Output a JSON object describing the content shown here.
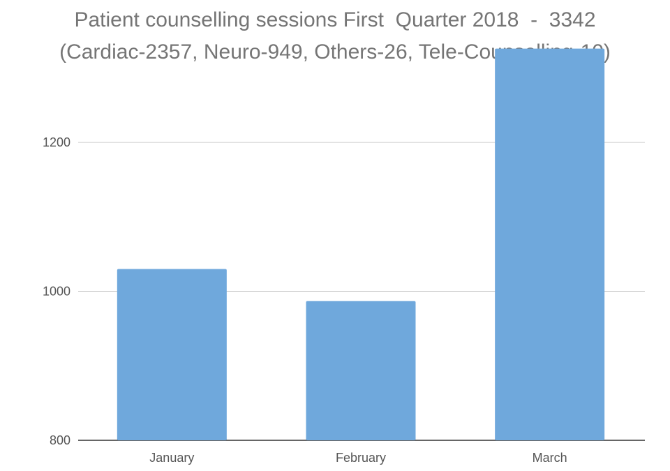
{
  "chart_data": {
    "type": "bar",
    "title": "Patient counselling sessions First  Quarter 2018  -  3342",
    "subtitle": "(Cardiac-2357, Neuro-949, Others-26, Tele-Counselling-10)",
    "categories": [
      "January",
      "February",
      "March"
    ],
    "values": [
      1030,
      987,
      1326
    ],
    "ylim": [
      800,
      1350
    ],
    "yticks": [
      800,
      1000,
      1200
    ],
    "ytick_labels": [
      "800",
      "1000",
      "1200"
    ],
    "xlabel": "",
    "ylabel": "",
    "grid": "horizontal",
    "legend": "none",
    "colors": {
      "bar": "#6fa8dc",
      "gridline": "#cccccc",
      "baseline": "#333333",
      "title": "#757575",
      "tick_text": "#555555"
    }
  }
}
